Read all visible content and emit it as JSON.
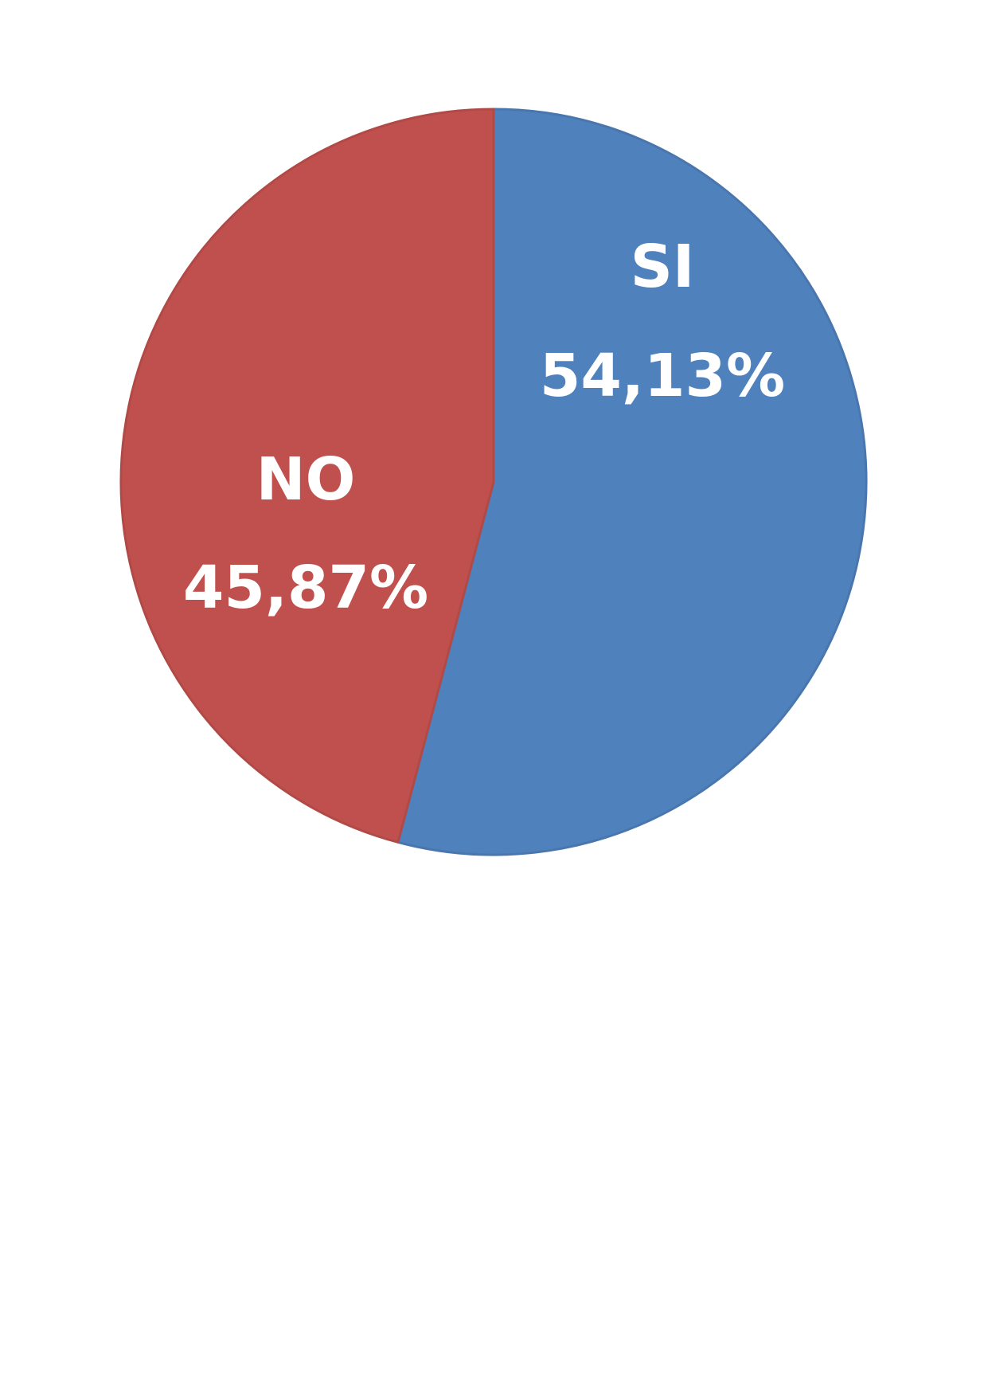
{
  "chart_data": {
    "type": "pie",
    "categories": [
      "SI",
      "NO"
    ],
    "values": [
      54.13,
      45.87
    ],
    "value_labels": [
      "54,13%",
      "45,87%"
    ],
    "colors": [
      "#4F81BD",
      "#C0504D"
    ],
    "border_colors": [
      "#4A76AE",
      "#B14A47"
    ],
    "start": "12 o'clock, clockwise",
    "legend": "none",
    "data_labels": "inside"
  }
}
